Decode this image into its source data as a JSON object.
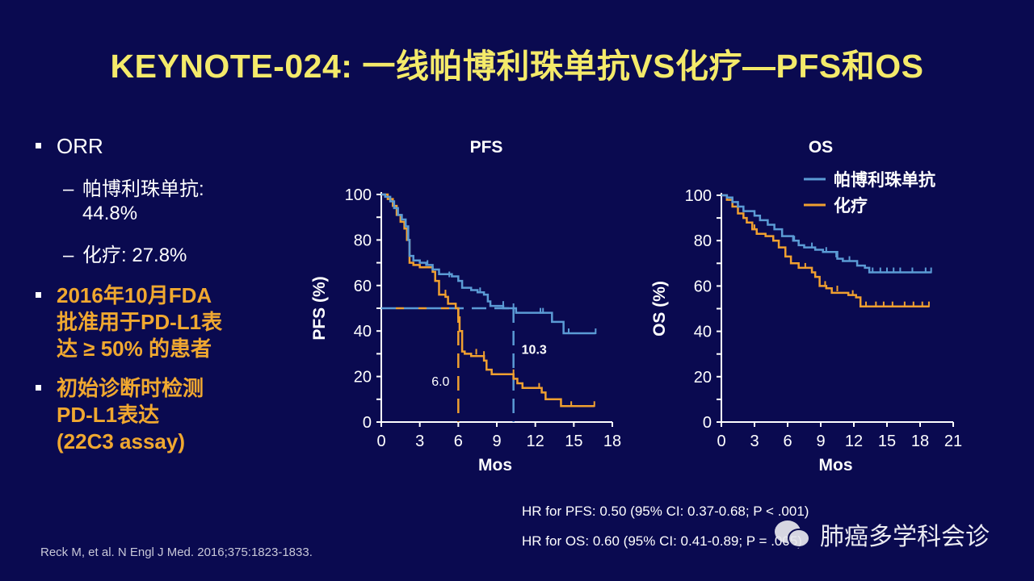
{
  "title": "KEYNOTE-024: 一线帕博利珠单抗VS化疗—PFS和OS",
  "bullets": {
    "orr": "ORR",
    "pembro_label": "帕博利珠单抗:",
    "pembro_value": "44.8%",
    "chemo_label": "化疗:",
    "chemo_value": "27.8%",
    "fda_line1": "2016年10月FDA",
    "fda_line2": "批准用于PD-L1表",
    "fda_line3": "达 ≥ 50% 的患者",
    "test_line1": "初始诊断时检测",
    "test_line2": "PD-L1表达",
    "test_line3": "(22C3 assay)",
    "dash": "–"
  },
  "reference": "Reck M, et al. N Engl J Med. 2016;375:1823-1833.",
  "hr_pfs": "HR for PFS: 0.50 (95% CI: 0.37-0.68; P < .001)",
  "hr_os": "HR for OS: 0.60 (95% CI: 0.41-0.89; P = .005)",
  "watermark": "肺癌多学科会诊",
  "colors": {
    "pembro": "#5b9bd5",
    "chemo": "#f0a030",
    "title": "#f4ea6a",
    "background": "#0a0a50"
  },
  "chart_data": [
    {
      "type": "line",
      "step": true,
      "title": "PFS",
      "xlabel": "Mos",
      "ylabel": "PFS (%)",
      "xlim": [
        0,
        18
      ],
      "ylim": [
        0,
        100
      ],
      "xticks": [
        0,
        3,
        6,
        9,
        12,
        15,
        18
      ],
      "yticks": [
        0,
        20,
        40,
        60,
        80,
        100
      ],
      "medians": [
        {
          "series": "化疗",
          "x": 6.0,
          "label": "6.0"
        },
        {
          "series": "帕博利珠单抗",
          "x": 10.3,
          "label": "10.3"
        }
      ],
      "series": [
        {
          "name": "帕博利珠单抗",
          "color": "#5b9bd5",
          "points": [
            [
              0,
              100
            ],
            [
              0.3,
              99
            ],
            [
              0.7,
              97
            ],
            [
              1,
              94
            ],
            [
              1.3,
              91
            ],
            [
              1.6,
              89
            ],
            [
              1.9,
              86
            ],
            [
              2.1,
              80
            ],
            [
              2.2,
              73
            ],
            [
              2.5,
              71
            ],
            [
              3,
              70
            ],
            [
              3.5,
              69
            ],
            [
              4,
              67
            ],
            [
              4.5,
              65
            ],
            [
              5.5,
              64
            ],
            [
              6,
              62
            ],
            [
              6.3,
              59
            ],
            [
              7,
              58
            ],
            [
              7.5,
              57
            ],
            [
              8,
              56
            ],
            [
              8.3,
              53
            ],
            [
              8.5,
              51
            ],
            [
              9.5,
              50
            ],
            [
              10.5,
              48
            ],
            [
              12,
              48
            ],
            [
              13.3,
              44
            ],
            [
              14.2,
              39
            ],
            [
              16.7,
              39
            ]
          ],
          "censor": [
            [
              1.0,
              94
            ],
            [
              3.6,
              69
            ],
            [
              5.3,
              64
            ],
            [
              7.7,
              57
            ],
            [
              9.5,
              51
            ],
            [
              10.3,
              50
            ],
            [
              12.4,
              48
            ],
            [
              12.6,
              48
            ],
            [
              14.6,
              39
            ],
            [
              16.7,
              39
            ]
          ]
        },
        {
          "name": "化疗",
          "color": "#f0a030",
          "points": [
            [
              0,
              100
            ],
            [
              0.5,
              98
            ],
            [
              0.9,
              95
            ],
            [
              1.2,
              91
            ],
            [
              1.5,
              88
            ],
            [
              1.8,
              85
            ],
            [
              2,
              80
            ],
            [
              2.2,
              70
            ],
            [
              2.5,
              69
            ],
            [
              3,
              68
            ],
            [
              4,
              66
            ],
            [
              4.2,
              62
            ],
            [
              4.5,
              56
            ],
            [
              5,
              55
            ],
            [
              5.2,
              52
            ],
            [
              5.8,
              50
            ],
            [
              6,
              46
            ],
            [
              6.1,
              40
            ],
            [
              6.3,
              31
            ],
            [
              6.5,
              30
            ],
            [
              7,
              29
            ],
            [
              8,
              27
            ],
            [
              8.2,
              23
            ],
            [
              8.6,
              21
            ],
            [
              10.3,
              19
            ],
            [
              10.6,
              17
            ],
            [
              11,
              15
            ],
            [
              12.5,
              13
            ],
            [
              12.8,
              10
            ],
            [
              14,
              7
            ],
            [
              16.6,
              7
            ]
          ],
          "censor": [
            [
              5.0,
              56
            ],
            [
              7.4,
              30
            ],
            [
              8.0,
              29
            ],
            [
              10.3,
              21
            ],
            [
              12.3,
              15
            ],
            [
              14.8,
              7
            ],
            [
              16.6,
              7
            ]
          ]
        }
      ]
    },
    {
      "type": "line",
      "step": true,
      "title": "OS",
      "xlabel": "Mos",
      "ylabel": "OS (%)",
      "xlim": [
        0,
        21
      ],
      "ylim": [
        0,
        100
      ],
      "xticks": [
        0,
        3,
        6,
        9,
        12,
        15,
        18,
        21
      ],
      "yticks": [
        0,
        20,
        40,
        60,
        80,
        100
      ],
      "legend": "top-right",
      "series": [
        {
          "name": "帕博利珠单抗",
          "color": "#5b9bd5",
          "points": [
            [
              0,
              100
            ],
            [
              0.5,
              99
            ],
            [
              1,
              97
            ],
            [
              1.5,
              95
            ],
            [
              2,
              93
            ],
            [
              3,
              91
            ],
            [
              3.5,
              89
            ],
            [
              4.2,
              87
            ],
            [
              4.8,
              85
            ],
            [
              5.5,
              82
            ],
            [
              6.5,
              80
            ],
            [
              7,
              78
            ],
            [
              7.5,
              77
            ],
            [
              8.5,
              76
            ],
            [
              9.2,
              75
            ],
            [
              10.5,
              72
            ],
            [
              11,
              71
            ],
            [
              12.3,
              69
            ],
            [
              13,
              68
            ],
            [
              13.4,
              66
            ],
            [
              19,
              66
            ]
          ],
          "censor": [
            [
              1.0,
              97
            ],
            [
              1.5,
              95
            ],
            [
              6.6,
              80
            ],
            [
              8.2,
              77
            ],
            [
              9.5,
              75
            ],
            [
              10.4,
              73
            ],
            [
              11.6,
              71
            ],
            [
              13.7,
              66
            ],
            [
              14.4,
              66
            ],
            [
              15.0,
              66
            ],
            [
              15.6,
              66
            ],
            [
              16.2,
              66
            ],
            [
              17.3,
              66
            ],
            [
              18.5,
              66
            ],
            [
              19,
              66
            ]
          ]
        },
        {
          "name": "化疗",
          "color": "#f0a030",
          "points": [
            [
              0,
              100
            ],
            [
              0.5,
              98
            ],
            [
              1,
              95
            ],
            [
              1.5,
              92
            ],
            [
              2,
              90
            ],
            [
              2.3,
              88
            ],
            [
              2.8,
              85
            ],
            [
              3.2,
              83
            ],
            [
              4,
              82
            ],
            [
              4.7,
              80
            ],
            [
              5.2,
              77
            ],
            [
              5.8,
              73
            ],
            [
              6.3,
              70
            ],
            [
              7,
              68
            ],
            [
              8.2,
              66
            ],
            [
              8.5,
              64
            ],
            [
              8.9,
              60
            ],
            [
              9.5,
              59
            ],
            [
              10,
              57
            ],
            [
              11.5,
              56
            ],
            [
              12.2,
              55
            ],
            [
              12.6,
              51
            ],
            [
              18.8,
              51
            ]
          ],
          "censor": [
            [
              3,
              85
            ],
            [
              5.8,
              75
            ],
            [
              7.6,
              68
            ],
            [
              9.4,
              60
            ],
            [
              10.5,
              58
            ],
            [
              11.9,
              56
            ],
            [
              13.1,
              51
            ],
            [
              14.0,
              51
            ],
            [
              14.7,
              51
            ],
            [
              15.5,
              51
            ],
            [
              16.6,
              51
            ],
            [
              17.4,
              51
            ],
            [
              18.2,
              51
            ],
            [
              18.8,
              51
            ]
          ]
        }
      ]
    }
  ]
}
